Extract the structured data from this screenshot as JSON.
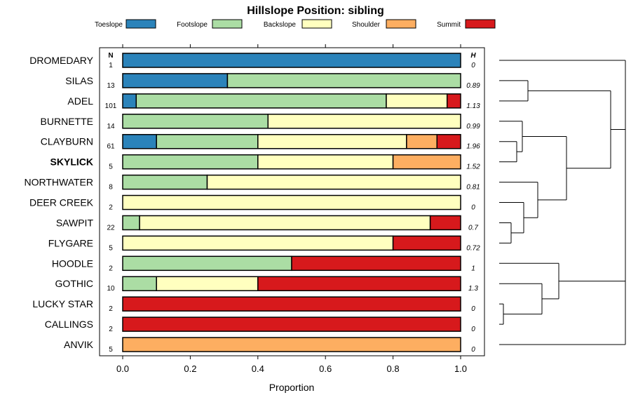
{
  "chart_data": {
    "type": "bar",
    "orientation": "horizontal-stacked",
    "title": "Hillslope Position: sibling",
    "xlabel": "Proportion",
    "xlim": [
      0,
      1
    ],
    "xticks": [
      "0.0",
      "0.2",
      "0.4",
      "0.6",
      "0.8",
      "1.0"
    ],
    "xtick_values": [
      0,
      0.2,
      0.4,
      0.6,
      0.8,
      1.0
    ],
    "n_header": "N",
    "h_header": "H",
    "series": [
      {
        "name": "Toeslope",
        "color": "#2b83ba"
      },
      {
        "name": "Footslope",
        "color": "#abdda4"
      },
      {
        "name": "Backslope",
        "color": "#ffffbf"
      },
      {
        "name": "Shoulder",
        "color": "#fdae61"
      },
      {
        "name": "Summit",
        "color": "#d7191c"
      }
    ],
    "rows": [
      {
        "label": "DROMEDARY",
        "n": "1",
        "h": "0",
        "bold": false,
        "values": [
          1,
          0,
          0,
          0,
          0
        ]
      },
      {
        "label": "SILAS",
        "n": "13",
        "h": "0.89",
        "bold": false,
        "values": [
          0.31,
          0.69,
          0,
          0,
          0
        ]
      },
      {
        "label": "ADEL",
        "n": "101",
        "h": "1.13",
        "bold": false,
        "values": [
          0.04,
          0.74,
          0.18,
          0,
          0.04
        ]
      },
      {
        "label": "BURNETTE",
        "n": "14",
        "h": "0.99",
        "bold": false,
        "values": [
          0,
          0.43,
          0.57,
          0,
          0
        ]
      },
      {
        "label": "CLAYBURN",
        "n": "61",
        "h": "1.96",
        "bold": false,
        "values": [
          0.1,
          0.3,
          0.44,
          0.09,
          0.07
        ]
      },
      {
        "label": "SKYLICK",
        "n": "5",
        "h": "1.52",
        "bold": true,
        "values": [
          0,
          0.4,
          0.4,
          0.2,
          0
        ]
      },
      {
        "label": "NORTHWATER",
        "n": "8",
        "h": "0.81",
        "bold": false,
        "values": [
          0,
          0.25,
          0.75,
          0,
          0
        ]
      },
      {
        "label": "DEER CREEK",
        "n": "2",
        "h": "0",
        "bold": false,
        "values": [
          0,
          0,
          1,
          0,
          0
        ]
      },
      {
        "label": "SAWPIT",
        "n": "22",
        "h": "0.7",
        "bold": false,
        "values": [
          0,
          0.05,
          0.86,
          0,
          0.09
        ]
      },
      {
        "label": "FLYGARE",
        "n": "5",
        "h": "0.72",
        "bold": false,
        "values": [
          0,
          0,
          0.8,
          0,
          0.2
        ]
      },
      {
        "label": "HOODLE",
        "n": "2",
        "h": "1",
        "bold": false,
        "values": [
          0,
          0.5,
          0,
          0,
          0.5
        ]
      },
      {
        "label": "GOTHIC",
        "n": "10",
        "h": "1.3",
        "bold": false,
        "values": [
          0,
          0.1,
          0.3,
          0,
          0.6
        ]
      },
      {
        "label": "LUCKY STAR",
        "n": "2",
        "h": "0",
        "bold": false,
        "values": [
          0,
          0,
          0,
          0,
          1
        ]
      },
      {
        "label": "CALLINGS",
        "n": "2",
        "h": "0",
        "bold": false,
        "values": [
          0,
          0,
          0,
          0,
          1
        ]
      },
      {
        "label": "ANVIK",
        "n": "5",
        "h": "0",
        "bold": false,
        "values": [
          0,
          0,
          0,
          1,
          0
        ]
      }
    ],
    "dendrogram": "hierarchical clustering of the 15 rows (right side)"
  }
}
